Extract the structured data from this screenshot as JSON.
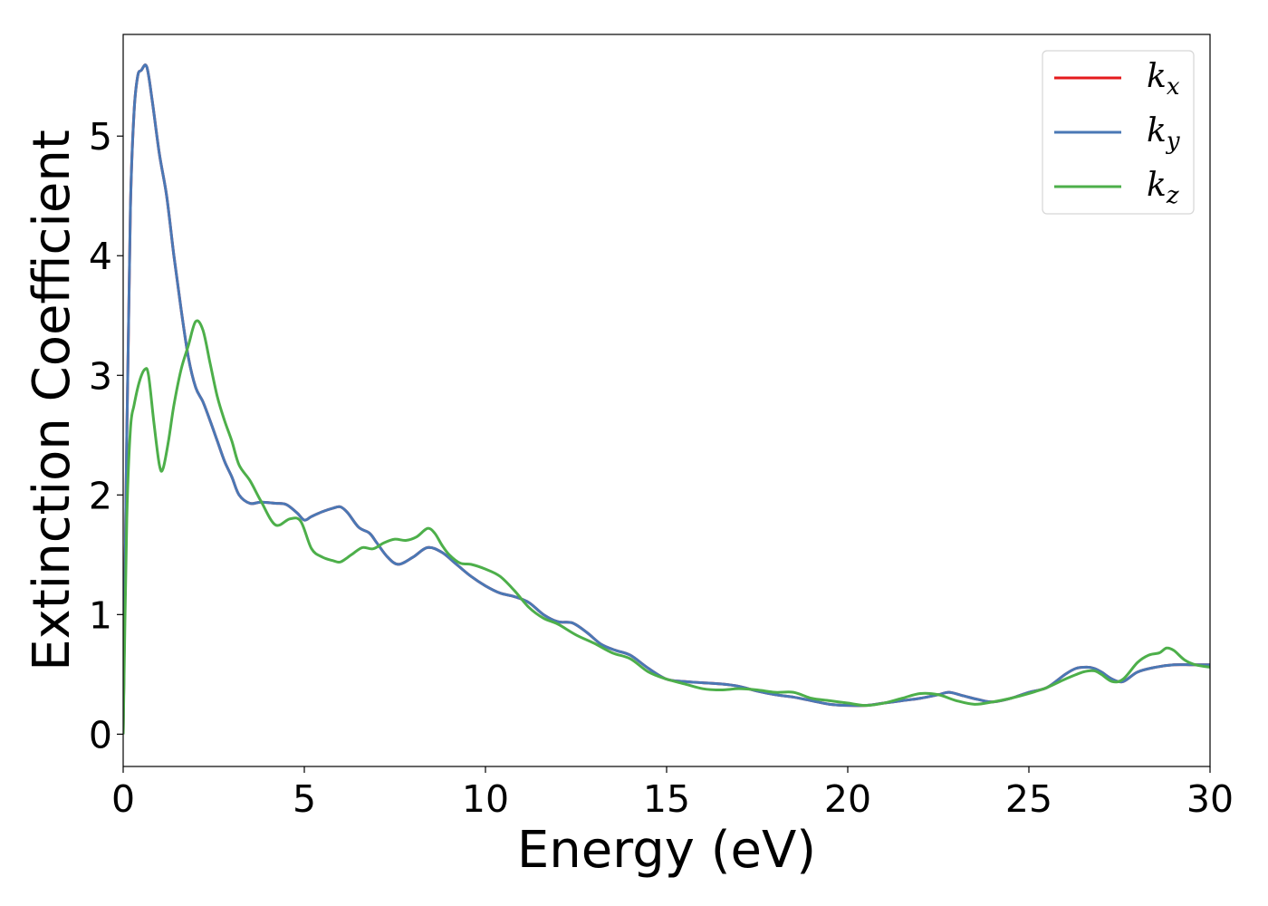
{
  "chart_data": {
    "type": "line",
    "title": "",
    "xlabel": "Energy (eV)",
    "ylabel": "Extinction Coefficient",
    "xlim": [
      0,
      30
    ],
    "ylim": [
      -0.27,
      5.85
    ],
    "xticks": [
      0,
      5,
      10,
      15,
      20,
      25,
      30
    ],
    "yticks": [
      0,
      1,
      2,
      3,
      4,
      5
    ],
    "grid": false,
    "legend_position": "top-right",
    "series": [
      {
        "name": "k",
        "sub": "x",
        "color": "#e41a1c",
        "x": [
          0,
          0.1,
          0.2,
          0.3,
          0.4,
          0.5,
          0.65,
          0.8,
          1.0,
          1.2,
          1.4,
          1.6,
          1.8,
          2.0,
          2.2,
          2.4,
          2.6,
          2.8,
          3.0,
          3.2,
          3.5,
          3.8,
          4.2,
          4.5,
          4.8,
          5.0,
          5.2,
          5.5,
          5.8,
          6.0,
          6.2,
          6.5,
          6.8,
          7.0,
          7.3,
          7.6,
          8.0,
          8.4,
          8.8,
          9.2,
          9.6,
          10.0,
          10.4,
          10.8,
          11.2,
          11.6,
          12.0,
          12.4,
          12.8,
          13.2,
          13.6,
          14.0,
          14.5,
          15.0,
          15.5,
          16.0,
          16.5,
          17.0,
          17.5,
          18.0,
          18.5,
          19.0,
          19.5,
          20.0,
          20.5,
          21.0,
          21.5,
          22.0,
          22.5,
          22.8,
          23.2,
          23.6,
          24.0,
          24.5,
          25.0,
          25.5,
          26.0,
          26.3,
          26.6,
          26.8,
          27.0,
          27.3,
          27.6,
          28.0,
          28.5,
          29.0,
          29.5,
          30.0
        ],
        "y": [
          0.0,
          2.5,
          4.4,
          5.2,
          5.5,
          5.55,
          5.58,
          5.3,
          4.85,
          4.5,
          4.0,
          3.55,
          3.15,
          2.9,
          2.78,
          2.62,
          2.45,
          2.28,
          2.15,
          2.0,
          1.93,
          1.94,
          1.93,
          1.92,
          1.85,
          1.79,
          1.82,
          1.86,
          1.89,
          1.9,
          1.85,
          1.73,
          1.68,
          1.6,
          1.48,
          1.42,
          1.48,
          1.56,
          1.52,
          1.42,
          1.32,
          1.24,
          1.18,
          1.15,
          1.1,
          1.0,
          0.94,
          0.93,
          0.85,
          0.75,
          0.7,
          0.66,
          0.55,
          0.46,
          0.44,
          0.43,
          0.42,
          0.4,
          0.36,
          0.33,
          0.31,
          0.28,
          0.25,
          0.24,
          0.24,
          0.26,
          0.28,
          0.3,
          0.33,
          0.35,
          0.32,
          0.29,
          0.27,
          0.3,
          0.35,
          0.39,
          0.5,
          0.55,
          0.56,
          0.55,
          0.52,
          0.46,
          0.44,
          0.52,
          0.56,
          0.58,
          0.58,
          0.58
        ]
      },
      {
        "name": "k",
        "sub": "y",
        "color": "#4a78b5",
        "x": [
          0,
          0.1,
          0.2,
          0.3,
          0.4,
          0.5,
          0.65,
          0.8,
          1.0,
          1.2,
          1.4,
          1.6,
          1.8,
          2.0,
          2.2,
          2.4,
          2.6,
          2.8,
          3.0,
          3.2,
          3.5,
          3.8,
          4.2,
          4.5,
          4.8,
          5.0,
          5.2,
          5.5,
          5.8,
          6.0,
          6.2,
          6.5,
          6.8,
          7.0,
          7.3,
          7.6,
          8.0,
          8.4,
          8.8,
          9.2,
          9.6,
          10.0,
          10.4,
          10.8,
          11.2,
          11.6,
          12.0,
          12.4,
          12.8,
          13.2,
          13.6,
          14.0,
          14.5,
          15.0,
          15.5,
          16.0,
          16.5,
          17.0,
          17.5,
          18.0,
          18.5,
          19.0,
          19.5,
          20.0,
          20.5,
          21.0,
          21.5,
          22.0,
          22.5,
          22.8,
          23.2,
          23.6,
          24.0,
          24.5,
          25.0,
          25.5,
          26.0,
          26.3,
          26.6,
          26.8,
          27.0,
          27.3,
          27.6,
          28.0,
          28.5,
          29.0,
          29.5,
          30.0
        ],
        "y": [
          0.0,
          2.5,
          4.4,
          5.2,
          5.5,
          5.55,
          5.58,
          5.3,
          4.85,
          4.5,
          4.0,
          3.55,
          3.15,
          2.9,
          2.78,
          2.62,
          2.45,
          2.28,
          2.15,
          2.0,
          1.93,
          1.94,
          1.93,
          1.92,
          1.85,
          1.79,
          1.82,
          1.86,
          1.89,
          1.9,
          1.85,
          1.73,
          1.68,
          1.6,
          1.48,
          1.42,
          1.48,
          1.56,
          1.52,
          1.42,
          1.32,
          1.24,
          1.18,
          1.15,
          1.1,
          1.0,
          0.94,
          0.93,
          0.85,
          0.75,
          0.7,
          0.66,
          0.55,
          0.46,
          0.44,
          0.43,
          0.42,
          0.4,
          0.36,
          0.33,
          0.31,
          0.28,
          0.25,
          0.24,
          0.24,
          0.26,
          0.28,
          0.3,
          0.33,
          0.35,
          0.32,
          0.29,
          0.27,
          0.3,
          0.35,
          0.39,
          0.5,
          0.55,
          0.56,
          0.55,
          0.52,
          0.46,
          0.44,
          0.52,
          0.56,
          0.58,
          0.58,
          0.58
        ]
      },
      {
        "name": "k",
        "sub": "z",
        "color": "#4daf4a",
        "x": [
          0,
          0.1,
          0.2,
          0.3,
          0.45,
          0.6,
          0.7,
          0.85,
          1.0,
          1.1,
          1.25,
          1.4,
          1.6,
          1.8,
          2.0,
          2.2,
          2.4,
          2.6,
          2.8,
          3.0,
          3.2,
          3.5,
          3.8,
          4.2,
          4.6,
          4.9,
          5.2,
          5.5,
          5.8,
          6.0,
          6.3,
          6.6,
          6.9,
          7.2,
          7.5,
          7.8,
          8.1,
          8.4,
          8.6,
          8.8,
          9.0,
          9.3,
          9.6,
          10.0,
          10.4,
          10.8,
          11.2,
          11.6,
          12.0,
          12.5,
          13.0,
          13.5,
          14.0,
          14.5,
          15.0,
          15.5,
          16.0,
          16.5,
          17.0,
          17.5,
          18.0,
          18.5,
          19.0,
          19.5,
          20.0,
          20.5,
          21.0,
          21.5,
          22.0,
          22.5,
          23.0,
          23.5,
          24.0,
          24.5,
          25.0,
          25.5,
          26.0,
          26.5,
          26.8,
          27.0,
          27.3,
          27.6,
          28.0,
          28.3,
          28.6,
          28.8,
          29.0,
          29.3,
          29.6,
          30.0
        ],
        "y": [
          0.0,
          1.8,
          2.55,
          2.75,
          2.95,
          3.05,
          3.0,
          2.6,
          2.25,
          2.22,
          2.45,
          2.75,
          3.05,
          3.25,
          3.45,
          3.38,
          3.1,
          2.82,
          2.62,
          2.45,
          2.25,
          2.12,
          1.95,
          1.75,
          1.8,
          1.78,
          1.55,
          1.48,
          1.45,
          1.44,
          1.5,
          1.56,
          1.55,
          1.6,
          1.63,
          1.62,
          1.65,
          1.72,
          1.68,
          1.58,
          1.5,
          1.43,
          1.42,
          1.38,
          1.32,
          1.2,
          1.06,
          0.97,
          0.92,
          0.83,
          0.76,
          0.68,
          0.63,
          0.52,
          0.46,
          0.42,
          0.38,
          0.37,
          0.38,
          0.37,
          0.35,
          0.35,
          0.3,
          0.28,
          0.26,
          0.24,
          0.26,
          0.3,
          0.34,
          0.33,
          0.28,
          0.25,
          0.27,
          0.3,
          0.34,
          0.39,
          0.46,
          0.52,
          0.53,
          0.5,
          0.44,
          0.46,
          0.6,
          0.66,
          0.68,
          0.72,
          0.7,
          0.62,
          0.58,
          0.56
        ]
      }
    ]
  }
}
